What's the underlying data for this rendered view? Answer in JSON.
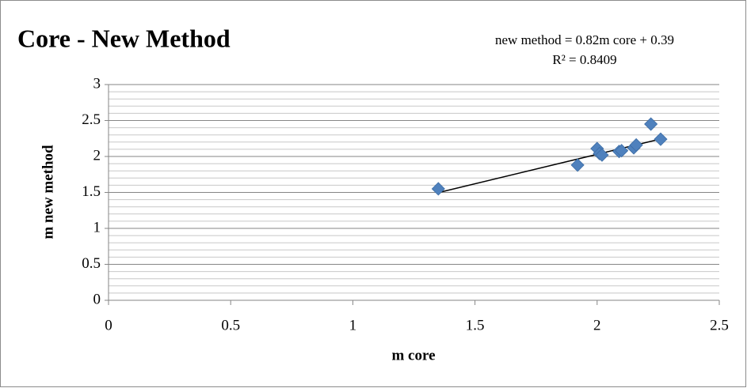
{
  "chart_data": {
    "type": "scatter",
    "title": "Core - New Method",
    "x_label": "m core",
    "y_label": "m new method",
    "x": [
      1.35,
      1.92,
      2.0,
      2.01,
      2.02,
      2.09,
      2.1,
      2.15,
      2.16,
      2.22,
      2.26
    ],
    "series": [
      {
        "color": "#4f81bd",
        "values": [
          1.55,
          1.88,
          2.11,
          2.04,
          2.02,
          2.07,
          2.08,
          2.12,
          2.16,
          2.45,
          2.24
        ]
      }
    ],
    "trendline": {
      "equation": "new method = 0.82m core + 0.39",
      "r2": "R² = 0.8409",
      "slope": 0.82,
      "intercept": 0.39,
      "color": "#000000"
    },
    "xlim": [
      0,
      2.5
    ],
    "xticks": [
      0,
      0.5,
      1,
      1.5,
      2,
      2.5
    ],
    "ylim": [
      0,
      3
    ],
    "yticks": [
      0,
      0.5,
      1,
      1.5,
      2,
      2.5,
      3
    ],
    "grid": true,
    "minor_grid": true
  }
}
